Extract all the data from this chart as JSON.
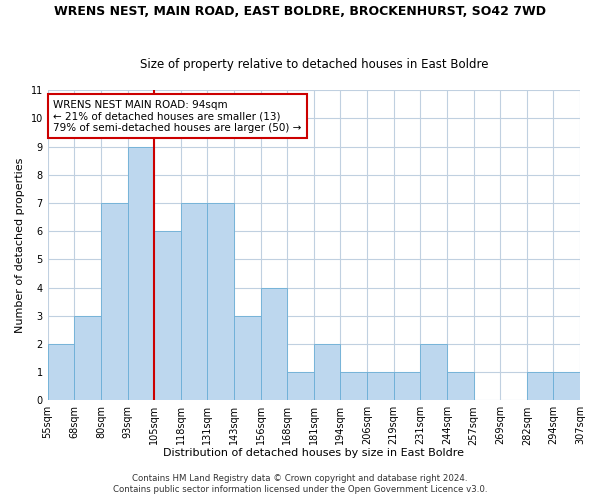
{
  "title": "WRENS NEST, MAIN ROAD, EAST BOLDRE, BROCKENHURST, SO42 7WD",
  "subtitle": "Size of property relative to detached houses in East Boldre",
  "xlabel": "Distribution of detached houses by size in East Boldre",
  "ylabel": "Number of detached properties",
  "bin_labels": [
    "55sqm",
    "68sqm",
    "80sqm",
    "93sqm",
    "105sqm",
    "118sqm",
    "131sqm",
    "143sqm",
    "156sqm",
    "168sqm",
    "181sqm",
    "194sqm",
    "206sqm",
    "219sqm",
    "231sqm",
    "244sqm",
    "257sqm",
    "269sqm",
    "282sqm",
    "294sqm",
    "307sqm"
  ],
  "bar_heights": [
    2,
    3,
    7,
    9,
    6,
    7,
    7,
    3,
    4,
    1,
    2,
    1,
    1,
    1,
    2,
    1,
    0,
    0,
    1,
    1
  ],
  "bar_color": "#bdd7ee",
  "bar_edge_color": "#6baed6",
  "highlight_line_color": "#cc0000",
  "highlight_after_bin": 3,
  "ylim": [
    0,
    11
  ],
  "yticks": [
    0,
    1,
    2,
    3,
    4,
    5,
    6,
    7,
    8,
    9,
    10,
    11
  ],
  "annotation_text": "WRENS NEST MAIN ROAD: 94sqm\n← 21% of detached houses are smaller (13)\n79% of semi-detached houses are larger (50) →",
  "annotation_box_color": "#ffffff",
  "annotation_edge_color": "#cc0000",
  "footer1": "Contains HM Land Registry data © Crown copyright and database right 2024.",
  "footer2": "Contains public sector information licensed under the Open Government Licence v3.0.",
  "background_color": "#ffffff",
  "grid_color": "#c0d0e0",
  "title_fontsize": 9,
  "subtitle_fontsize": 8.5,
  "axis_label_fontsize": 8,
  "tick_fontsize": 7,
  "annotation_fontsize": 7.5,
  "footer_fontsize": 6.2
}
